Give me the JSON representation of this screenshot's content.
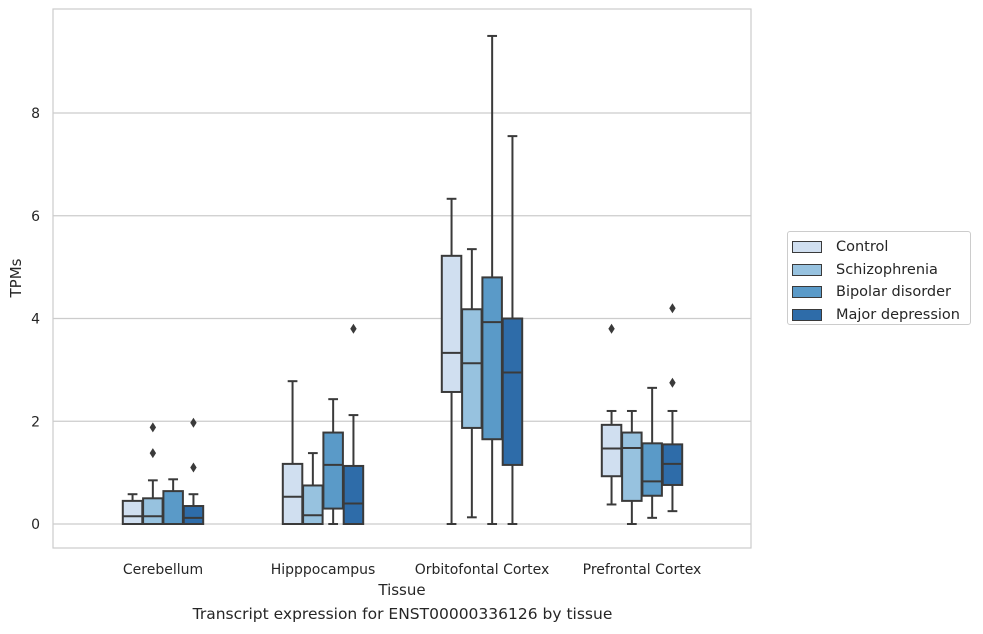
{
  "chart_data": {
    "type": "box",
    "title": "Transcript expression for ENST00000336126 by tissue",
    "xlabel": "Tissue",
    "ylabel": "TPMs",
    "ylim": [
      -0.45,
      10.0
    ],
    "yticks": [
      0,
      2,
      4,
      6,
      8
    ],
    "grid": "horizontal",
    "legend_position": "right",
    "categories": [
      "Cerebellum",
      "Hipppocampus",
      "Orbitofontal Cortex",
      "Prefrontal Cortex"
    ],
    "series": [
      {
        "name": "Control",
        "color": "#d0dff0",
        "boxes": [
          {
            "whislo": 0,
            "q1": 0,
            "med": 0.15,
            "q3": 0.45,
            "whishi": 0.58,
            "fliers": []
          },
          {
            "whislo": 0,
            "q1": 0,
            "med": 0.53,
            "q3": 1.17,
            "whishi": 2.78,
            "fliers": []
          },
          {
            "whislo": 0,
            "q1": 2.57,
            "med": 3.33,
            "q3": 5.22,
            "whishi": 6.33,
            "fliers": []
          },
          {
            "whislo": 0.38,
            "q1": 0.93,
            "med": 1.47,
            "q3": 1.93,
            "whishi": 2.2,
            "fliers": [
              3.8
            ]
          }
        ]
      },
      {
        "name": "Schizophrenia",
        "color": "#97c2df",
        "boxes": [
          {
            "whislo": 0,
            "q1": 0,
            "med": 0.15,
            "q3": 0.5,
            "whishi": 0.85,
            "fliers": [
              1.38,
              1.88
            ]
          },
          {
            "whislo": 0,
            "q1": 0,
            "med": 0.17,
            "q3": 0.75,
            "whishi": 1.38,
            "fliers": []
          },
          {
            "whislo": 0.13,
            "q1": 1.87,
            "med": 3.13,
            "q3": 4.18,
            "whishi": 5.35,
            "fliers": []
          },
          {
            "whislo": 0,
            "q1": 0.45,
            "med": 1.48,
            "q3": 1.78,
            "whishi": 2.2,
            "fliers": []
          }
        ]
      },
      {
        "name": "Bipolar disorder",
        "color": "#5a9ac8",
        "boxes": [
          {
            "whislo": 0,
            "q1": 0,
            "med": 0,
            "q3": 0.64,
            "whishi": 0.87,
            "fliers": []
          },
          {
            "whislo": 0,
            "q1": 0.3,
            "med": 1.15,
            "q3": 1.78,
            "whishi": 2.43,
            "fliers": []
          },
          {
            "whislo": 0,
            "q1": 1.65,
            "med": 3.93,
            "q3": 4.8,
            "whishi": 9.5,
            "fliers": []
          },
          {
            "whislo": 0.12,
            "q1": 0.55,
            "med": 0.83,
            "q3": 1.57,
            "whishi": 2.65,
            "fliers": []
          }
        ]
      },
      {
        "name": "Major depression",
        "color": "#2e6ca9",
        "boxes": [
          {
            "whislo": 0,
            "q1": 0,
            "med": 0.12,
            "q3": 0.35,
            "whishi": 0.58,
            "fliers": [
              1.1,
              1.97
            ]
          },
          {
            "whislo": 0,
            "q1": 0,
            "med": 0.4,
            "q3": 1.13,
            "whishi": 2.12,
            "fliers": [
              3.8
            ]
          },
          {
            "whislo": 0,
            "q1": 1.15,
            "med": 2.95,
            "q3": 4.0,
            "whishi": 7.55,
            "fliers": []
          },
          {
            "whislo": 0.25,
            "q1": 0.76,
            "med": 1.17,
            "q3": 1.55,
            "whishi": 2.2,
            "fliers": [
              2.75,
              4.2
            ]
          }
        ]
      }
    ]
  }
}
